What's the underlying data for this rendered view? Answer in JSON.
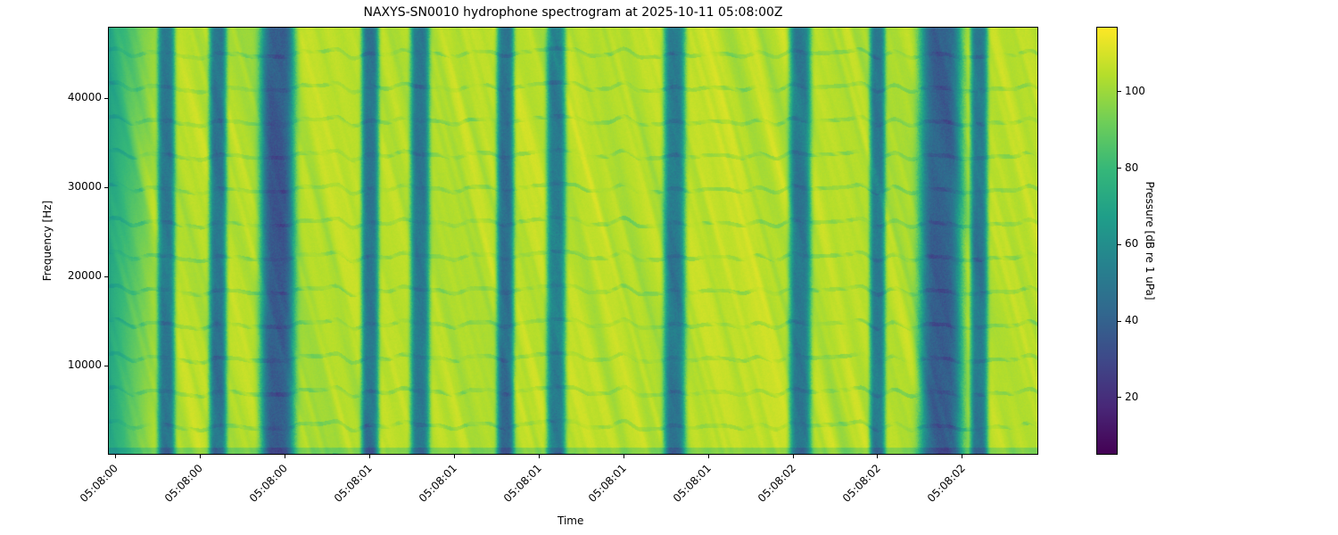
{
  "chart_data": {
    "type": "heatmap",
    "title": "NAXYS-SN0010 hydrophone spectrogram at 2025-10-11 05:08:00Z",
    "xlabel": "Time",
    "ylabel": "Frequency [Hz]",
    "colorbar_label": "Pressure [dB re 1 uPa]",
    "colormap": "viridis",
    "x_ticks": [
      {
        "t": 0.4,
        "label": "05:08:00"
      },
      {
        "t": 0.6,
        "label": "05:08:00"
      },
      {
        "t": 0.8,
        "label": "05:08:00"
      },
      {
        "t": 1.0,
        "label": "05:08:01"
      },
      {
        "t": 1.2,
        "label": "05:08:01"
      },
      {
        "t": 1.4,
        "label": "05:08:01"
      },
      {
        "t": 1.6,
        "label": "05:08:01"
      },
      {
        "t": 1.8,
        "label": "05:08:01"
      },
      {
        "t": 2.0,
        "label": "05:08:02"
      },
      {
        "t": 2.2,
        "label": "05:08:02"
      },
      {
        "t": 2.4,
        "label": "05:08:02"
      }
    ],
    "xlim_seconds_after_05_08_00": [
      0.383,
      2.579
    ],
    "y_ticks": [
      10000,
      20000,
      30000,
      40000
    ],
    "ylim": [
      0,
      48000
    ],
    "colorbar_ticks": [
      20,
      40,
      60,
      80,
      100
    ],
    "clim": [
      5,
      117
    ],
    "background_level_db": 105,
    "low_level_bands": [
      {
        "t": 0.518,
        "width": 0.02,
        "db": 50
      },
      {
        "t": 0.64,
        "width": 0.02,
        "db": 48
      },
      {
        "t": 0.781,
        "width": 0.04,
        "db": 38
      },
      {
        "t": 1.0,
        "width": 0.02,
        "db": 48
      },
      {
        "t": 1.118,
        "width": 0.022,
        "db": 50
      },
      {
        "t": 1.32,
        "width": 0.02,
        "db": 45
      },
      {
        "t": 1.44,
        "width": 0.022,
        "db": 52
      },
      {
        "t": 1.72,
        "width": 0.025,
        "db": 50
      },
      {
        "t": 2.017,
        "width": 0.025,
        "db": 50
      },
      {
        "t": 2.2,
        "width": 0.018,
        "db": 52
      },
      {
        "t": 2.35,
        "width": 0.05,
        "db": 40
      },
      {
        "t": 2.44,
        "width": 0.02,
        "db": 50
      }
    ]
  }
}
